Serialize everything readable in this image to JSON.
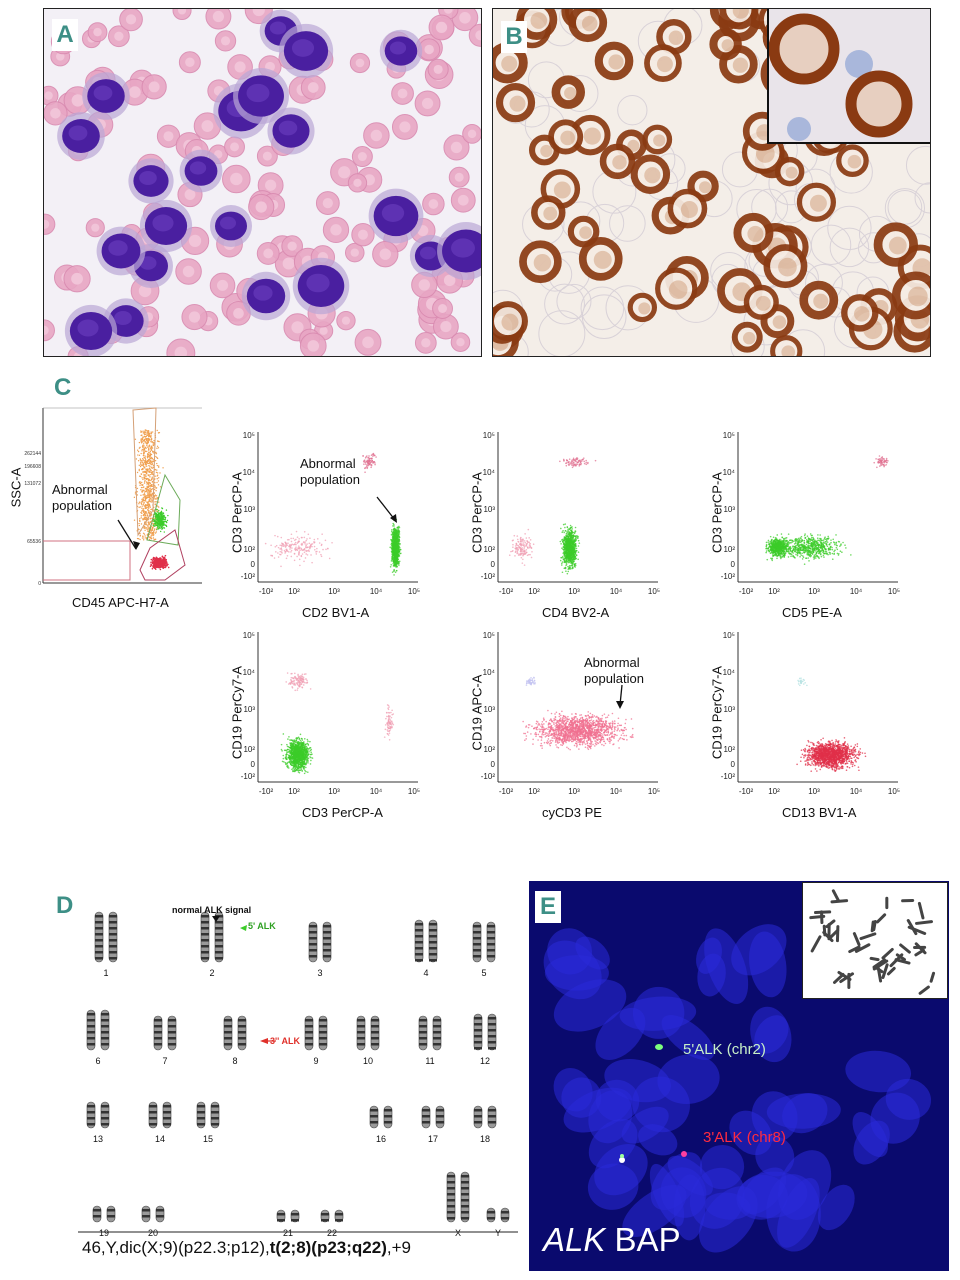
{
  "panels": {
    "a": {
      "label": "A"
    },
    "b": {
      "label": "B"
    },
    "c": {
      "label": "C",
      "gate": {
        "ylabel": "SSC-A",
        "xlabel": "CD45 APC-H7-A",
        "annotation": [
          "Abnormal",
          "population"
        ],
        "yticks": [
          "262144",
          "196608",
          "131072",
          "65536",
          "0"
        ]
      },
      "plots": [
        {
          "ylabel": "CD3 PerCP-A",
          "xlabel": "CD2 BV1-A",
          "annotation": [
            "Abnormal",
            "population"
          ]
        },
        {
          "ylabel": "CD3 PerCP-A",
          "xlabel": "CD4 BV2-A"
        },
        {
          "ylabel": "CD3 PerCP-A",
          "xlabel": "CD5 PE-A"
        },
        {
          "ylabel": "CD19 PerCy7-A",
          "xlabel": "CD3 PerCP-A"
        },
        {
          "ylabel": "CD19 APC-A",
          "xlabel": "cyCD3 PE",
          "annotation": [
            "Abnormal",
            "population"
          ]
        },
        {
          "ylabel": "CD19 PerCy7-A",
          "xlabel": "CD13 BV1-A"
        }
      ],
      "yticks": [
        "10⁵",
        "10⁴",
        "10³",
        "10²",
        "0",
        "-10²"
      ],
      "xticks": [
        "-10²",
        "10²",
        "10³",
        "10⁴",
        "10⁵"
      ]
    },
    "d": {
      "label": "D",
      "signal_normal": "normal ALK signal",
      "signal_5": "5' ALK",
      "signal_3": "3'' ALK",
      "chromosomes": [
        "1",
        "2",
        "3",
        "4",
        "5",
        "6",
        "7",
        "8",
        "9",
        "10",
        "11",
        "12",
        "13",
        "14",
        "15",
        "16",
        "17",
        "18",
        "19",
        "20",
        "21",
        "22",
        "X",
        "Y"
      ],
      "karyotype_plain": "46,Y,dic(X;9)(p22.3;p12),",
      "karyotype_bold": "t(2;8)(p23;q22)",
      "karyotype_tail": ",+9"
    },
    "e": {
      "label": "E",
      "probe5": "5'ALK (chr2)",
      "probe3": "3'ALK (chr8)",
      "title_italic": "ALK",
      "title_rest": " BAP"
    }
  },
  "colors": {
    "accent": "#3d8f86",
    "green": "#3ccc2a",
    "red": "#e0304a",
    "orange": "#f0a050",
    "fish_bg": "#0a0a6e"
  }
}
